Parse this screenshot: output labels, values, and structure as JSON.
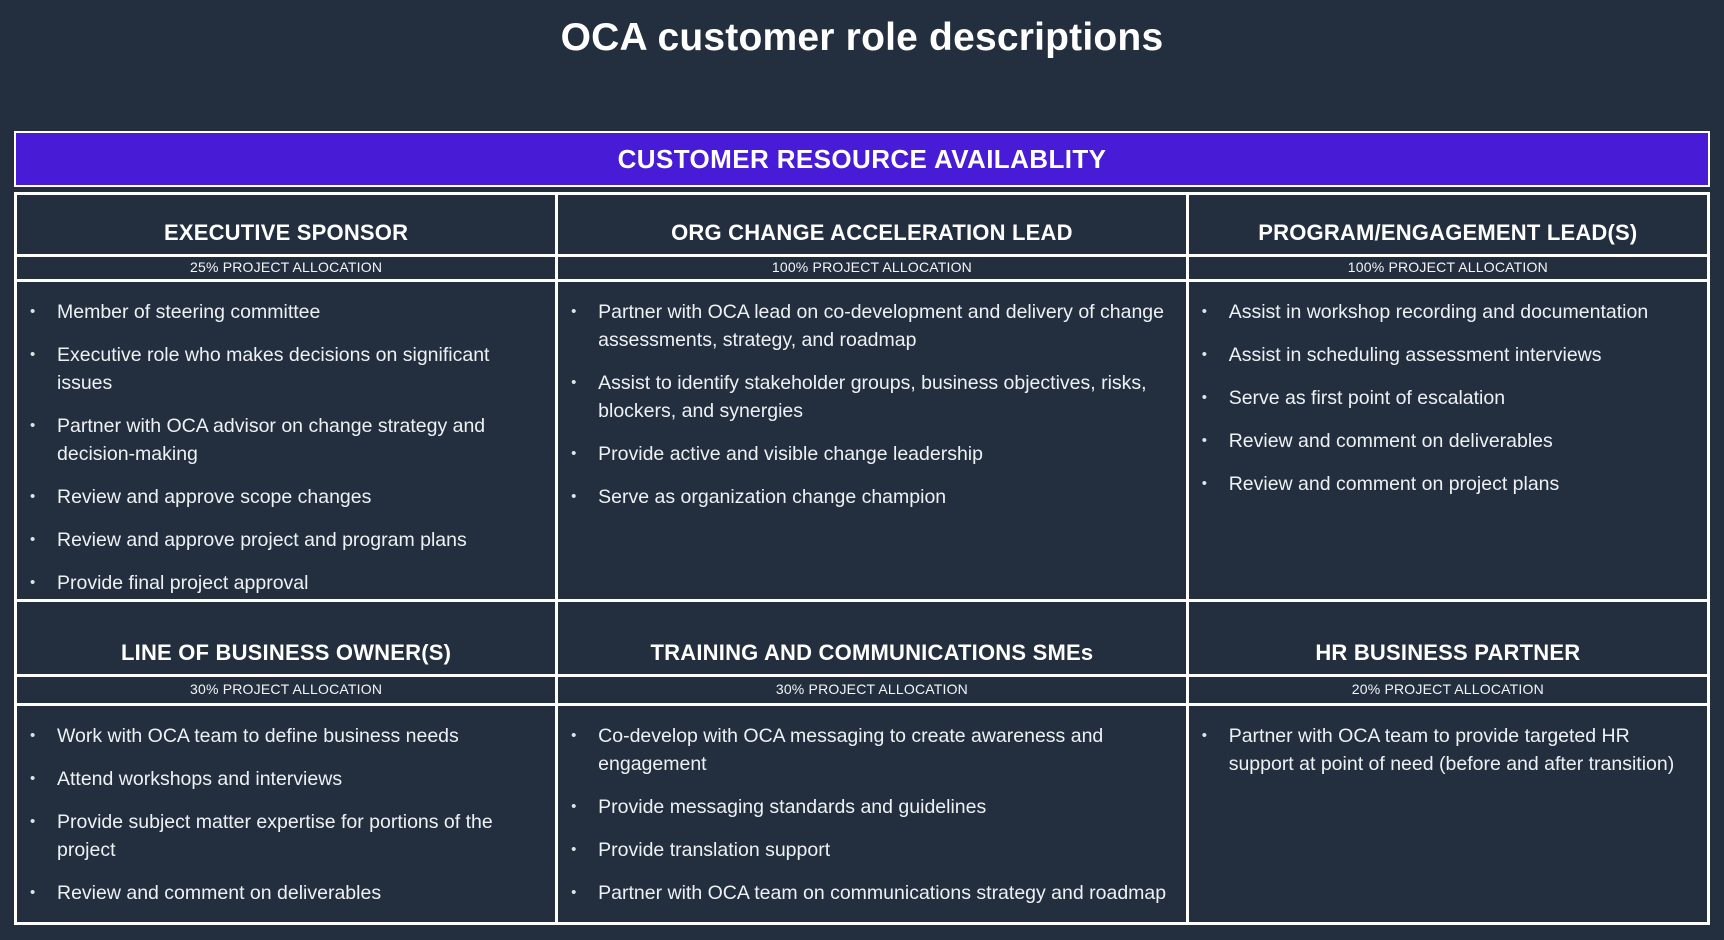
{
  "page": {
    "title": "OCA customer role descriptions"
  },
  "banner": {
    "label": "CUSTOMER RESOURCE AVAILABLITY"
  },
  "colors": {
    "background": "#232f3e",
    "banner_purple": "#481cd6",
    "grid_line": "#ffffff",
    "title_text": "#ffffff",
    "body_text": "#eef1f4"
  },
  "roles": [
    {
      "name": "EXECUTIVE SPONSOR",
      "allocation": "25% PROJECT ALLOCATION",
      "bullets": [
        "Member of steering committee",
        "Executive role who makes decisions on significant issues",
        "Partner with OCA advisor on change strategy and decision-making",
        "Review and approve scope changes",
        "Review and approve project and program plans",
        "Provide final project approval"
      ]
    },
    {
      "name": "ORG CHANGE ACCELERATION LEAD",
      "allocation": "100% PROJECT ALLOCATION",
      "bullets": [
        "Partner with OCA lead on co-development and delivery of change assessments, strategy, and roadmap",
        "Assist to identify stakeholder groups, business objectives, risks, blockers, and synergies",
        "Provide active and visible change leadership",
        "Serve as organization change champion"
      ]
    },
    {
      "name": "PROGRAM/ENGAGEMENT LEAD(S)",
      "allocation": "100% PROJECT ALLOCATION",
      "bullets": [
        "Assist in workshop recording and documentation",
        "Assist in scheduling assessment interviews",
        "Serve as first point of escalation",
        "Review and comment on deliverables",
        "Review and comment on project plans"
      ]
    },
    {
      "name": "LINE OF BUSINESS OWNER(S)",
      "allocation": "30% PROJECT ALLOCATION",
      "bullets": [
        "Work with OCA team to define business needs",
        "Attend workshops and interviews",
        "Provide subject matter expertise for portions of the project",
        "Review and comment on deliverables"
      ]
    },
    {
      "name": "TRAINING AND COMMUNICATIONS SMEs",
      "allocation": "30% PROJECT ALLOCATION",
      "bullets": [
        "Co-develop with OCA messaging to create awareness and engagement",
        "Provide messaging standards and guidelines",
        "Provide translation support",
        "Partner with OCA team on communications strategy and roadmap"
      ]
    },
    {
      "name": "HR BUSINESS PARTNER",
      "allocation": "20% PROJECT ALLOCATION",
      "bullets": [
        "Partner with OCA team to provide targeted HR support at point of need (before and after transition)"
      ]
    }
  ]
}
